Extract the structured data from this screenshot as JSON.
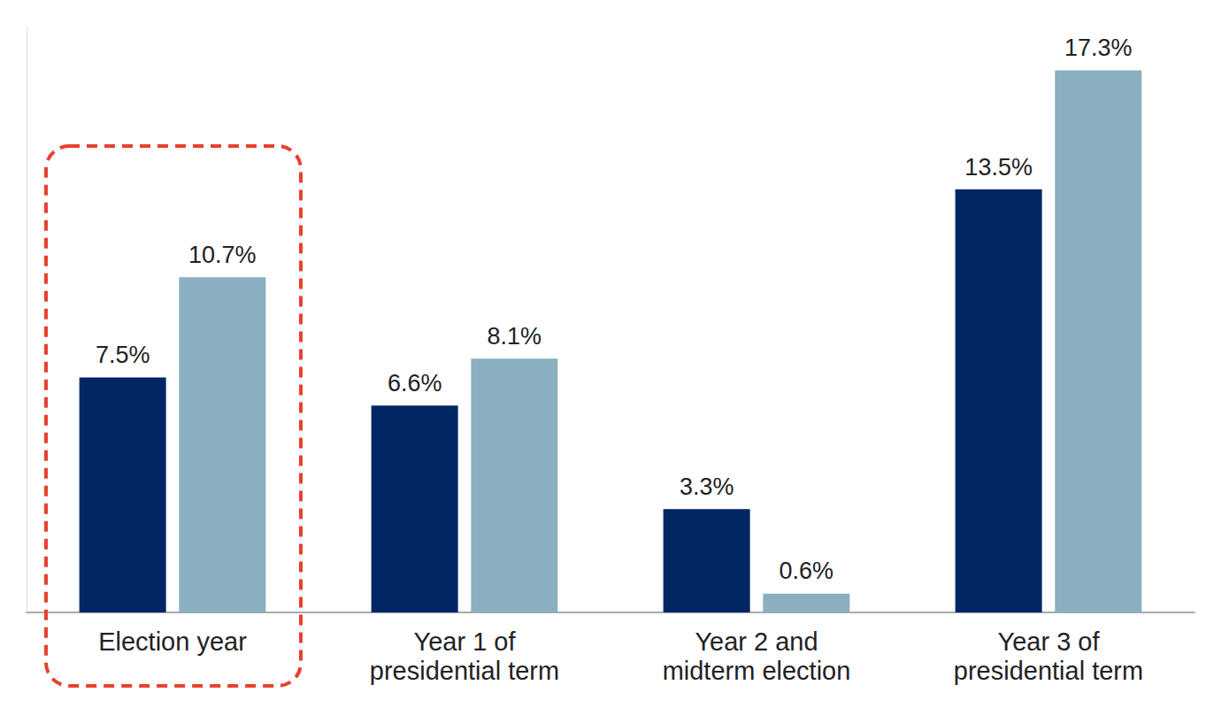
{
  "chart_data": {
    "type": "bar",
    "categories": [
      "Election year",
      "Year 1 of\npresidential term",
      "Year 2 and\nmidterm election",
      "Year 3 of\npresidential term"
    ],
    "series": [
      {
        "color": "#002663",
        "values": [
          7.5,
          6.6,
          3.3,
          13.5
        ],
        "value_labels": [
          "7.5%",
          "6.6%",
          "3.3%",
          "13.5%"
        ]
      },
      {
        "color": "#8aafc0",
        "values": [
          10.7,
          8.1,
          0.6,
          17.3
        ],
        "value_labels": [
          "10.7%",
          "8.1%",
          "0.6%",
          "17.3%"
        ]
      }
    ],
    "ylim": [
      0,
      18.7
    ],
    "grid": false,
    "data_labels": true,
    "tick_labels": "x"
  }
}
